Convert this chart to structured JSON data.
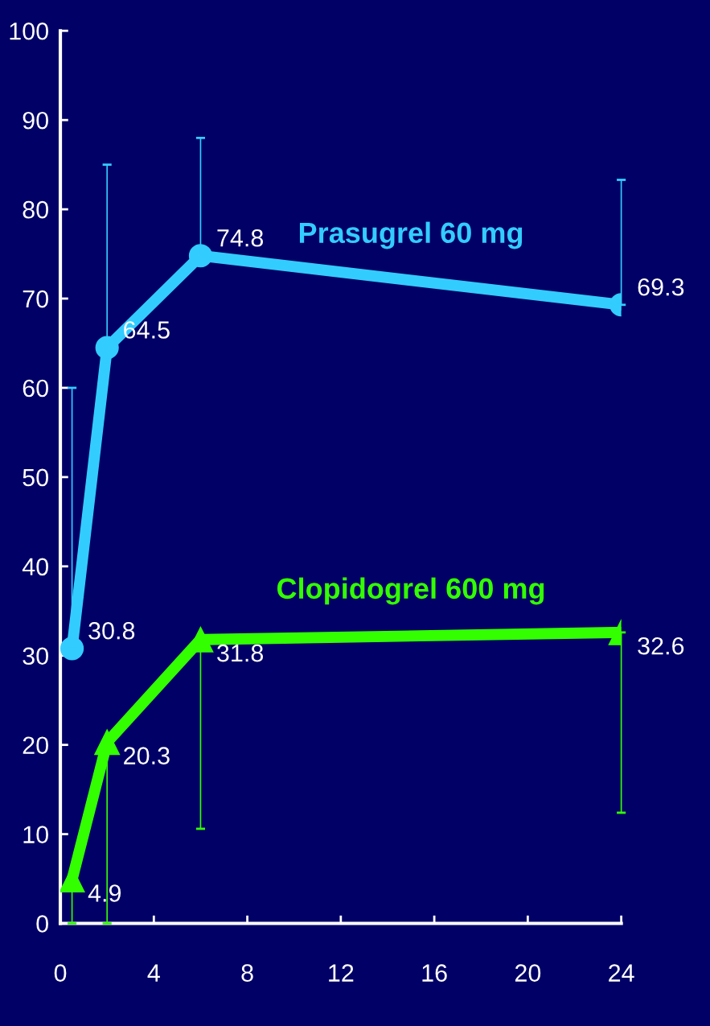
{
  "chart_data": {
    "type": "line",
    "x": [
      0.5,
      2,
      6,
      24
    ],
    "series": [
      {
        "name": "Prasugrel 60 mg",
        "color": "#33ccff",
        "marker": "circle",
        "values": [
          30.8,
          64.5,
          74.8,
          69.3
        ],
        "errors": [
          [
            30.8,
            60
          ],
          [
            64.5,
            85
          ],
          [
            74.8,
            88
          ],
          [
            69.3,
            83.3
          ]
        ]
      },
      {
        "name": "Clopidogrel 600 mg",
        "color": "#33ff00",
        "marker": "triangle",
        "values": [
          4.9,
          20.3,
          31.8,
          32.6
        ],
        "errors": [
          [
            0,
            4.9
          ],
          [
            0,
            20.3
          ],
          [
            10.6,
            31.8
          ],
          [
            12.4,
            32.6
          ]
        ]
      }
    ],
    "xlim": [
      0,
      24
    ],
    "xticks": [
      0,
      4,
      8,
      12,
      16,
      20,
      24
    ],
    "ylim": [
      0,
      100
    ],
    "yticks": [
      0,
      10,
      20,
      30,
      40,
      50,
      60,
      70,
      80,
      90,
      100
    ],
    "grid": false,
    "legend": false,
    "data_labels": true,
    "line_style": "solid"
  }
}
